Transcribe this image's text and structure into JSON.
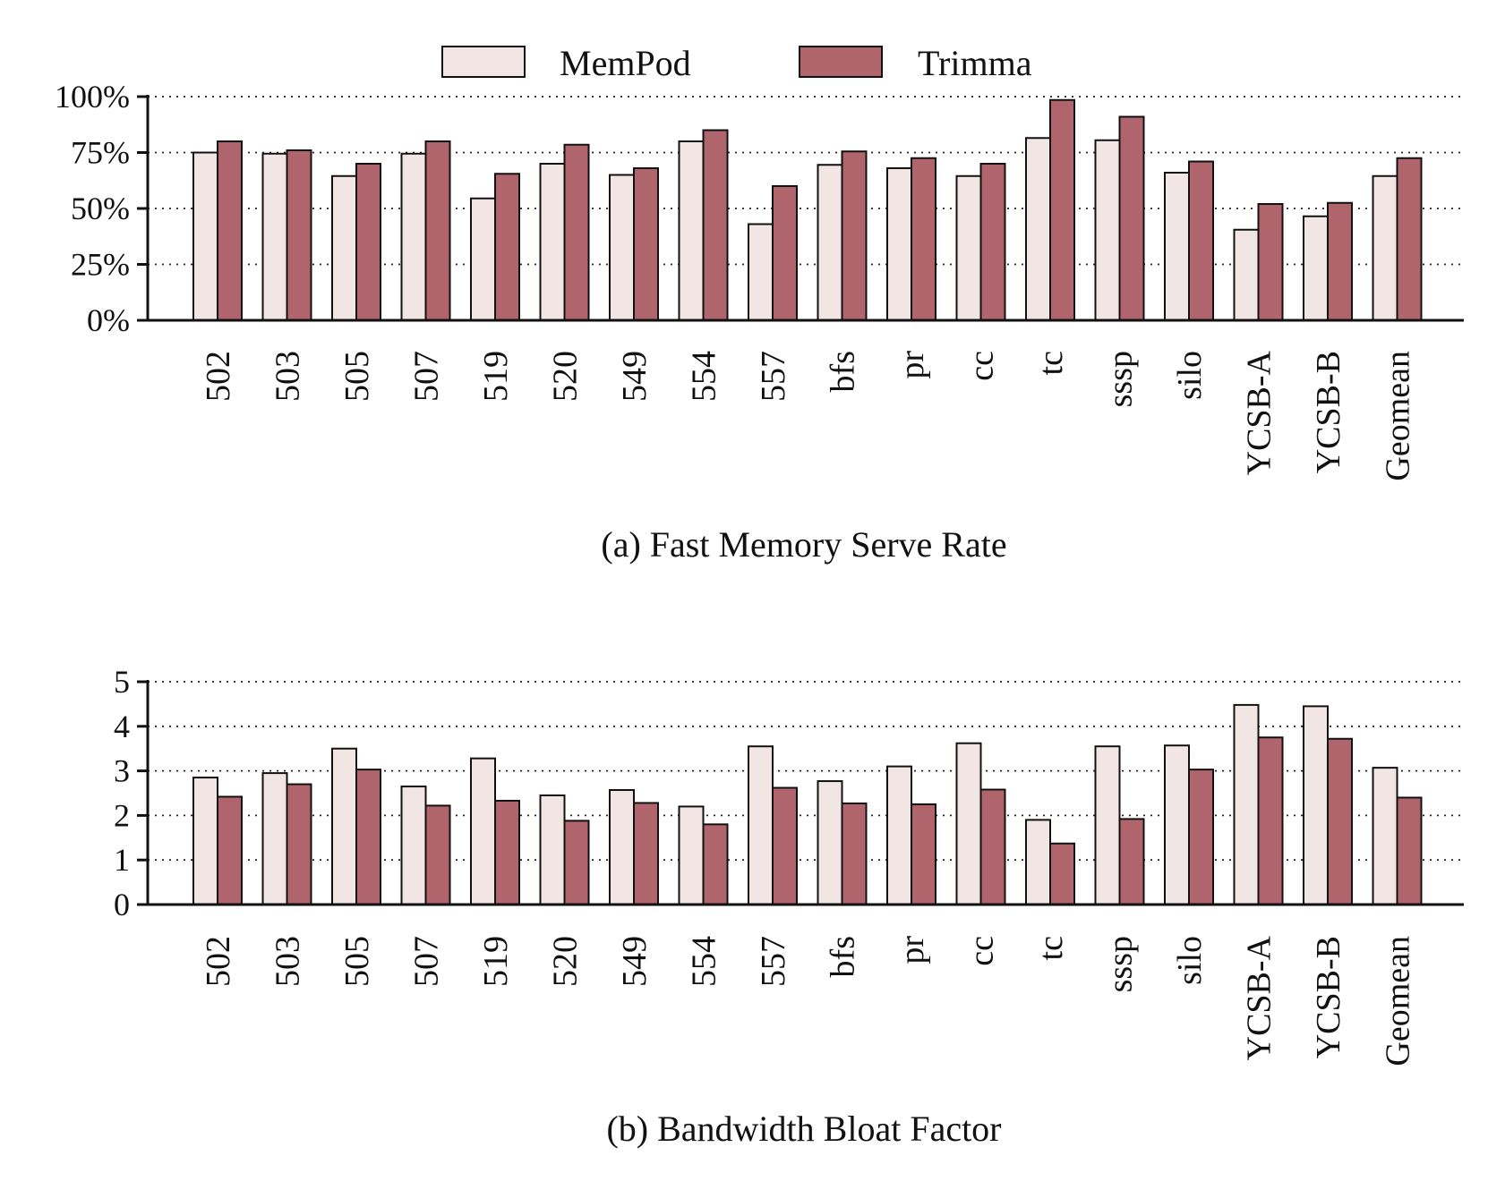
{
  "legend": {
    "items": [
      {
        "label": "MemPod",
        "color": "#f1e6e4"
      },
      {
        "label": "Trimma",
        "color": "#b0646c"
      }
    ]
  },
  "chart_data": [
    {
      "type": "bar",
      "caption": "(a) Fast Memory Serve Rate",
      "categories": [
        "502",
        "503",
        "505",
        "507",
        "519",
        "520",
        "549",
        "554",
        "557",
        "bfs",
        "pr",
        "cc",
        "tc",
        "sssp",
        "silo",
        "YCSB-A",
        "YCSB-B",
        "Geomean"
      ],
      "series": [
        {
          "name": "MemPod",
          "values": [
            75,
            74.5,
            64.5,
            74.5,
            54.5,
            70,
            65,
            80,
            43,
            69.5,
            68,
            64.5,
            81.5,
            80.5,
            66,
            40.5,
            46.5,
            64.5
          ]
        },
        {
          "name": "Trimma",
          "values": [
            80,
            76,
            70,
            80,
            65.5,
            78.5,
            68,
            85,
            60,
            75.5,
            72.5,
            70,
            98.5,
            91,
            71,
            52,
            52.5,
            72.5
          ]
        }
      ],
      "ylim": [
        0,
        100
      ],
      "yticks": [
        "0%",
        "25%",
        "50%",
        "75%",
        "100%"
      ],
      "grid": true
    },
    {
      "type": "bar",
      "caption": "(b) Bandwidth Bloat Factor",
      "categories": [
        "502",
        "503",
        "505",
        "507",
        "519",
        "520",
        "549",
        "554",
        "557",
        "bfs",
        "pr",
        "cc",
        "tc",
        "sssp",
        "silo",
        "YCSB-A",
        "YCSB-B",
        "Geomean"
      ],
      "series": [
        {
          "name": "MemPod",
          "values": [
            2.85,
            2.95,
            3.5,
            2.65,
            3.28,
            2.45,
            2.57,
            2.2,
            3.55,
            2.77,
            3.1,
            3.62,
            1.9,
            3.55,
            3.57,
            4.48,
            4.45,
            3.07
          ]
        },
        {
          "name": "Trimma",
          "values": [
            2.42,
            2.7,
            3.03,
            2.22,
            2.33,
            1.88,
            2.28,
            1.8,
            2.62,
            2.27,
            2.25,
            2.58,
            1.37,
            1.92,
            3.03,
            3.75,
            3.72,
            2.4
          ]
        }
      ],
      "ylim": [
        0,
        5
      ],
      "yticks": [
        "0",
        "1",
        "2",
        "3",
        "4",
        "5"
      ],
      "grid": true
    }
  ]
}
